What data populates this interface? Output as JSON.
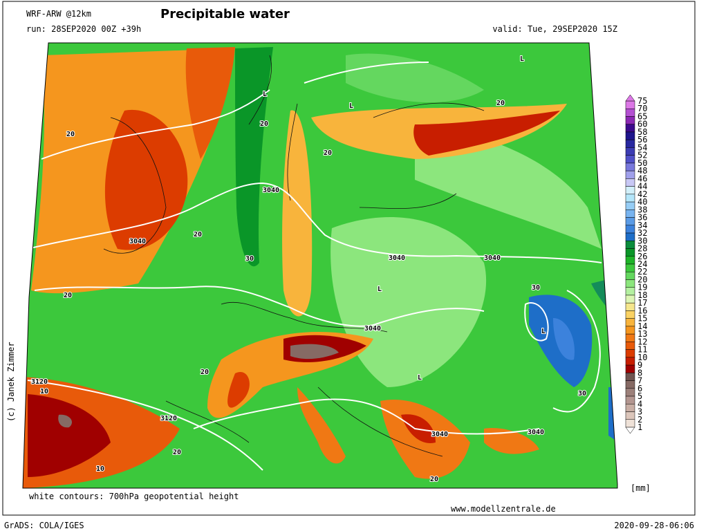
{
  "header": {
    "model": "WRF-ARW @12km",
    "title": "Precipitable water",
    "run": "run: 28SEP2020 00Z +39h",
    "valid": "valid: Tue, 29SEP2020 15Z"
  },
  "map": {
    "labels": [
      "3040",
      "3040",
      "3040",
      "3040",
      "3040",
      "3040",
      "3040",
      "3120",
      "3120",
      "20",
      "20",
      "20",
      "20",
      "20",
      "20",
      "20",
      "20",
      "20",
      "30",
      "30",
      "30",
      "10",
      "10",
      "L",
      "L",
      "L",
      "L",
      "L",
      "L"
    ]
  },
  "credit": "(c) Janek Zimmer",
  "colorbar": {
    "unit": "[mm]",
    "labels": [
      75,
      70,
      65,
      60,
      58,
      56,
      54,
      52,
      50,
      48,
      46,
      44,
      42,
      40,
      38,
      36,
      34,
      32,
      30,
      28,
      26,
      24,
      22,
      20,
      19,
      18,
      17,
      16,
      15,
      14,
      13,
      12,
      11,
      10,
      9,
      8,
      7,
      6,
      5,
      4,
      3,
      2,
      1
    ],
    "colors": [
      "#dc78e6",
      "#b450d2",
      "#8c28b4",
      "#3c0a8c",
      "#1e148c",
      "#2828a0",
      "#3c3cb4",
      "#5050c8",
      "#7878dc",
      "#a0a0eb",
      "#c8c8f5",
      "#d2f0fa",
      "#b4e6fa",
      "#96cdf5",
      "#78b4f0",
      "#5a9be6",
      "#3c82dc",
      "#1e6ec8",
      "#0a8c3c",
      "#0a9628",
      "#1eb428",
      "#3cc83c",
      "#64d75f",
      "#8ce67d",
      "#b4f0a0",
      "#dcf5b4",
      "#f5e68c",
      "#fad264",
      "#f8b43c",
      "#f5961e",
      "#f07814",
      "#e85a0a",
      "#dc3c00",
      "#c81e00",
      "#a00000",
      "#6f5450",
      "#866a64",
      "#9c807a",
      "#b39690",
      "#c8aea4",
      "#dcc6bb",
      "#efe2d8"
    ]
  },
  "footer": {
    "contours": "white contours: 700hPa geopotential height",
    "site": "www.modellzentrale.de",
    "grads": "GrADS: COLA/IGES",
    "timestamp": "2020-09-28-06:06"
  }
}
